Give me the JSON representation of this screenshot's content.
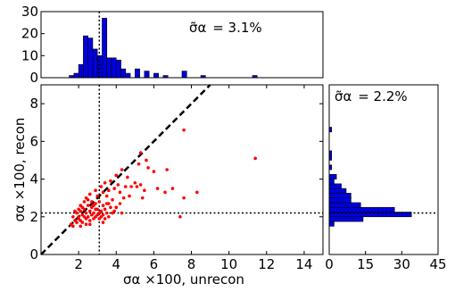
{
  "chart_data": [
    {
      "id": "top-histogram",
      "type": "bar",
      "bin_width": 0.25,
      "bins": [
        {
          "x": 1.5,
          "count": 1
        },
        {
          "x": 1.75,
          "count": 2
        },
        {
          "x": 2.0,
          "count": 6
        },
        {
          "x": 2.25,
          "count": 19
        },
        {
          "x": 2.5,
          "count": 18
        },
        {
          "x": 2.75,
          "count": 13
        },
        {
          "x": 3.0,
          "count": 10
        },
        {
          "x": 3.25,
          "count": 27
        },
        {
          "x": 3.5,
          "count": 9
        },
        {
          "x": 3.75,
          "count": 9
        },
        {
          "x": 4.0,
          "count": 8
        },
        {
          "x": 4.25,
          "count": 4
        },
        {
          "x": 4.5,
          "count": 2
        },
        {
          "x": 5.0,
          "count": 4
        },
        {
          "x": 5.5,
          "count": 3
        },
        {
          "x": 6.0,
          "count": 2
        },
        {
          "x": 6.5,
          "count": 1
        },
        {
          "x": 7.5,
          "count": 3
        },
        {
          "x": 8.5,
          "count": 1
        },
        {
          "x": 11.25,
          "count": 1
        }
      ],
      "xlim": [
        0,
        15
      ],
      "ylim": [
        0,
        30
      ],
      "yticks": [
        "0",
        "10",
        "20",
        "30"
      ],
      "median_line_x": 3.1,
      "annotation_symbol": "σ̃α",
      "annotation_value": "= 3.1%",
      "bar_color": "#0000dd"
    },
    {
      "id": "scatter",
      "type": "scatter",
      "xlabel": "σα ×100, unrecon",
      "ylabel": "σα ×100, recon",
      "xlim": [
        0,
        15
      ],
      "ylim": [
        0,
        9
      ],
      "xticks": [
        "2",
        "4",
        "6",
        "8",
        "10",
        "12",
        "14"
      ],
      "yticks": [
        "0",
        "2",
        "4",
        "6",
        "8"
      ],
      "point_color": "#ff0000",
      "reference_line": {
        "style": "dashed",
        "slope": 1
      },
      "median_x": 3.1,
      "median_y": 2.2,
      "points": [
        [
          1.6,
          1.6
        ],
        [
          1.7,
          2.0
        ],
        [
          1.8,
          1.8
        ],
        [
          1.9,
          2.2
        ],
        [
          1.9,
          1.7
        ],
        [
          2.0,
          2.0
        ],
        [
          2.0,
          1.9
        ],
        [
          2.1,
          2.3
        ],
        [
          2.1,
          1.8
        ],
        [
          2.2,
          2.1
        ],
        [
          2.2,
          1.7
        ],
        [
          2.3,
          2.4
        ],
        [
          2.3,
          2.0
        ],
        [
          2.4,
          1.9
        ],
        [
          2.4,
          2.2
        ],
        [
          2.5,
          2.0
        ],
        [
          2.5,
          2.6
        ],
        [
          2.6,
          1.8
        ],
        [
          2.6,
          2.3
        ],
        [
          2.7,
          2.1
        ],
        [
          2.7,
          2.5
        ],
        [
          2.8,
          1.9
        ],
        [
          2.8,
          2.2
        ],
        [
          2.9,
          2.0
        ],
        [
          2.9,
          2.7
        ],
        [
          3.0,
          2.1
        ],
        [
          3.0,
          2.4
        ],
        [
          3.1,
          1.9
        ],
        [
          3.1,
          2.2
        ],
        [
          3.2,
          2.3
        ],
        [
          3.2,
          2.0
        ],
        [
          3.3,
          2.6
        ],
        [
          3.3,
          2.1
        ],
        [
          3.4,
          2.4
        ],
        [
          3.4,
          1.9
        ],
        [
          3.5,
          2.2
        ],
        [
          3.5,
          2.7
        ],
        [
          3.6,
          2.0
        ],
        [
          3.7,
          2.5
        ],
        [
          3.8,
          2.2
        ],
        [
          2.0,
          2.4
        ],
        [
          2.1,
          2.6
        ],
        [
          2.3,
          2.8
        ],
        [
          2.4,
          3.0
        ],
        [
          2.6,
          3.2
        ],
        [
          2.7,
          2.8
        ],
        [
          2.9,
          3.4
        ],
        [
          3.0,
          3.1
        ],
        [
          3.2,
          3.6
        ],
        [
          3.3,
          3.3
        ],
        [
          3.4,
          3.8
        ],
        [
          3.6,
          3.4
        ],
        [
          3.7,
          3.9
        ],
        [
          3.9,
          3.5
        ],
        [
          4.0,
          4.2
        ],
        [
          4.1,
          3.7
        ],
        [
          4.2,
          3.3
        ],
        [
          4.3,
          4.5
        ],
        [
          4.5,
          3.6
        ],
        [
          4.6,
          4.1
        ],
        [
          4.8,
          3.6
        ],
        [
          5.0,
          3.8
        ],
        [
          5.1,
          3.6
        ],
        [
          5.3,
          3.7
        ],
        [
          5.5,
          3.4
        ],
        [
          5.2,
          4.8
        ],
        [
          5.6,
          5.0
        ],
        [
          6.0,
          4.4
        ],
        [
          6.2,
          3.5
        ],
        [
          6.6,
          3.3
        ],
        [
          6.7,
          4.5
        ],
        [
          7.0,
          3.5
        ],
        [
          7.4,
          2.0
        ],
        [
          7.6,
          3.0
        ],
        [
          8.3,
          3.3
        ],
        [
          7.6,
          6.6
        ],
        [
          5.3,
          5.4
        ],
        [
          5.7,
          4.6
        ],
        [
          11.4,
          5.1
        ],
        [
          4.2,
          2.7
        ],
        [
          3.8,
          2.9
        ],
        [
          4.4,
          3.0
        ],
        [
          3.5,
          3.1
        ],
        [
          2.2,
          2.5
        ],
        [
          1.8,
          2.3
        ],
        [
          2.5,
          2.9
        ],
        [
          2.8,
          2.6
        ],
        [
          3.1,
          2.8
        ],
        [
          3.6,
          2.7
        ],
        [
          4.0,
          2.5
        ],
        [
          4.7,
          3.1
        ],
        [
          5.4,
          3.0
        ],
        [
          2.6,
          1.6
        ],
        [
          3.3,
          1.7
        ],
        [
          1.7,
          1.5
        ],
        [
          2.1,
          1.5
        ],
        [
          3.9,
          2.3
        ],
        [
          4.3,
          2.2
        ],
        [
          2.4,
          1.6
        ],
        [
          2.9,
          2.4
        ]
      ]
    },
    {
      "id": "right-histogram",
      "type": "bar",
      "orientation": "horizontal",
      "bin_width": 0.25,
      "bins": [
        {
          "y": 1.5,
          "count": 2
        },
        {
          "y": 1.75,
          "count": 14
        },
        {
          "y": 2.0,
          "count": 34
        },
        {
          "y": 2.25,
          "count": 27
        },
        {
          "y": 2.5,
          "count": 13
        },
        {
          "y": 2.75,
          "count": 9
        },
        {
          "y": 3.0,
          "count": 9
        },
        {
          "y": 3.25,
          "count": 7
        },
        {
          "y": 3.5,
          "count": 5
        },
        {
          "y": 3.75,
          "count": 2
        },
        {
          "y": 4.0,
          "count": 3
        },
        {
          "y": 4.5,
          "count": 1
        },
        {
          "y": 5.0,
          "count": 1
        },
        {
          "y": 5.25,
          "count": 1
        },
        {
          "y": 6.5,
          "count": 1
        }
      ],
      "xlim": [
        0,
        45
      ],
      "ylim": [
        0,
        9
      ],
      "xticks": [
        "0",
        "15",
        "30",
        "45"
      ],
      "median_line_y": 2.2,
      "annotation_symbol": "σ̃α",
      "annotation_value": "= 2.2%",
      "bar_color": "#0000dd"
    }
  ]
}
